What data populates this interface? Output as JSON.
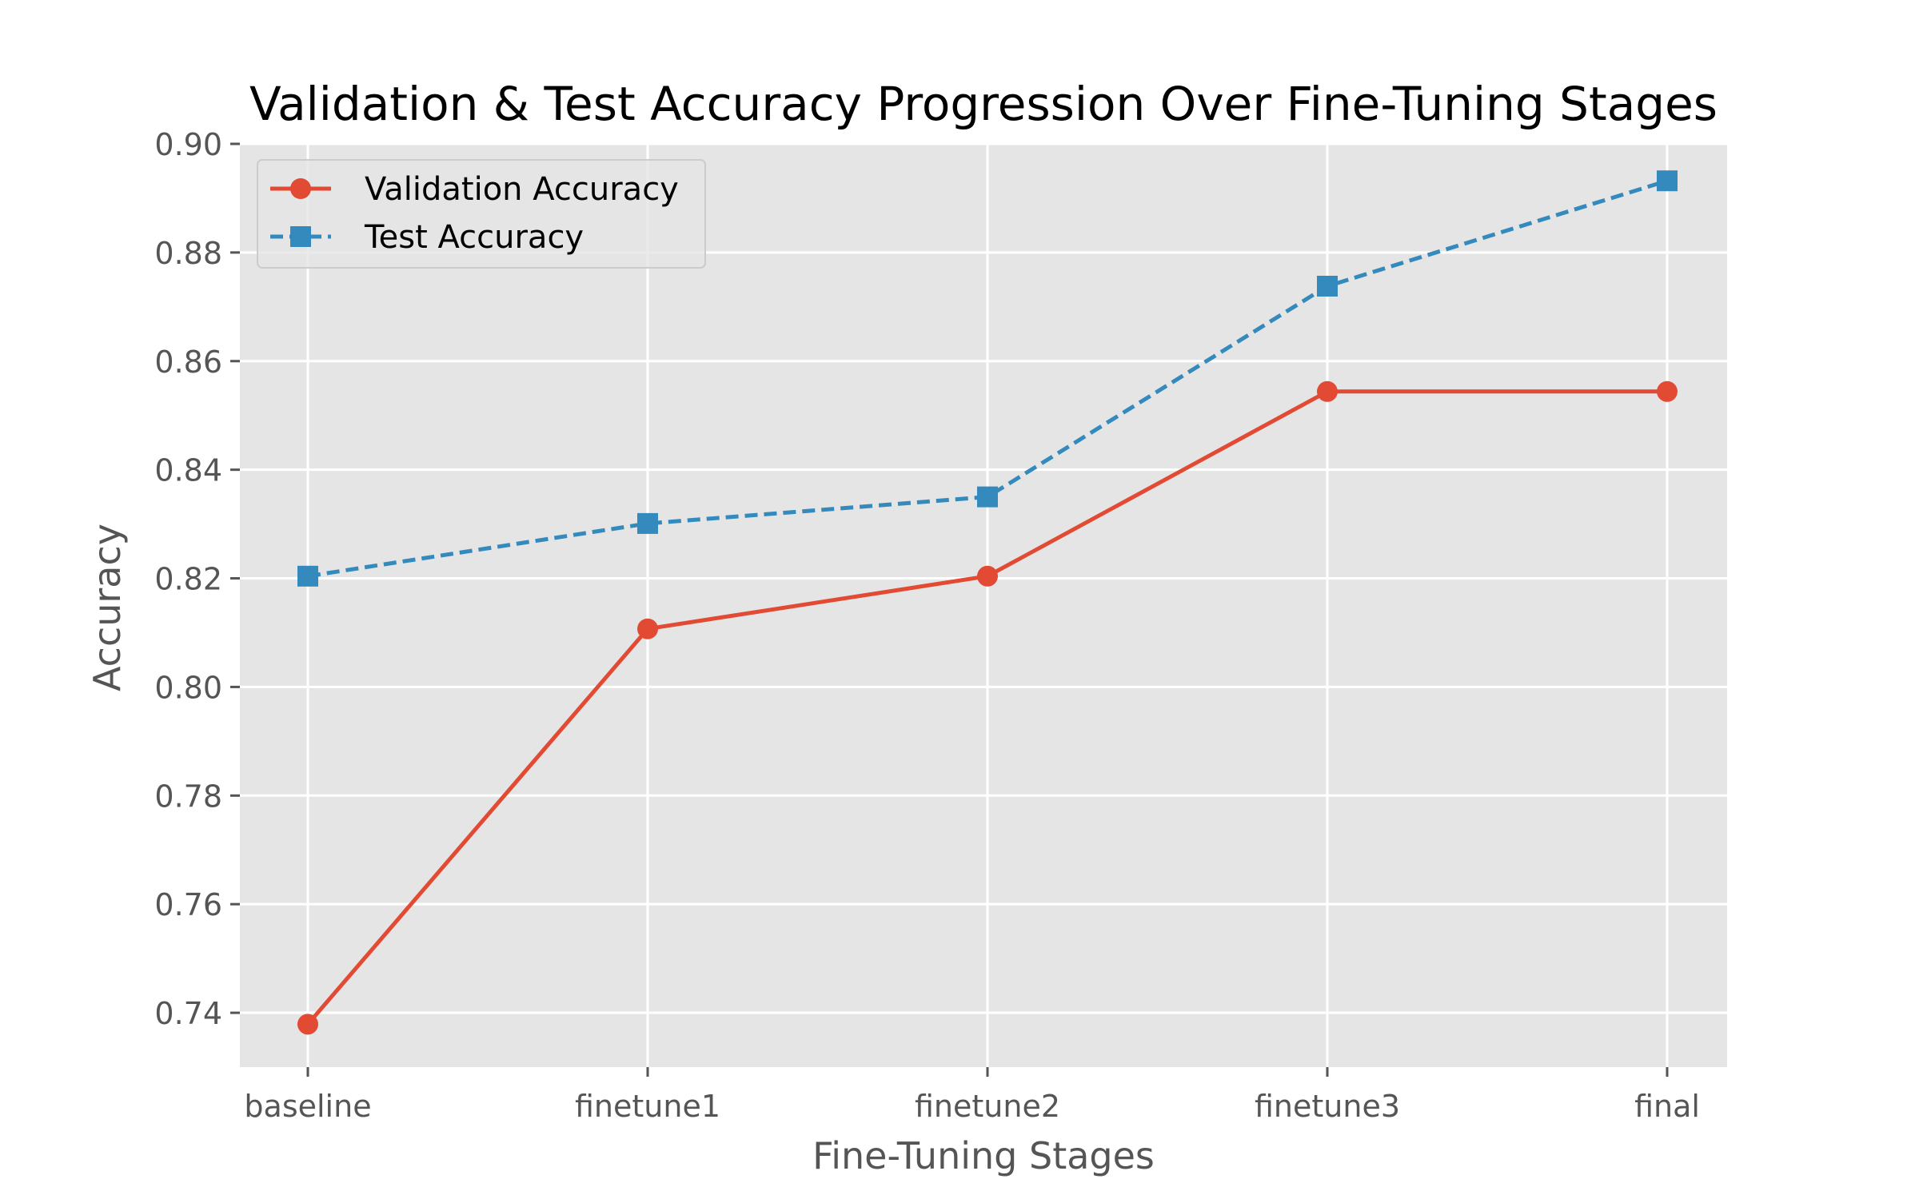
{
  "chart_data": {
    "type": "line",
    "title": "Validation & Test Accuracy Progression Over Fine-Tuning Stages",
    "xlabel": "Fine-Tuning Stages",
    "ylabel": "Accuracy",
    "categories": [
      "baseline",
      "finetune1",
      "finetune2",
      "finetune3",
      "final"
    ],
    "ylim": [
      0.73,
      0.9
    ],
    "yticks": [
      0.74,
      0.76,
      0.78,
      0.8,
      0.82,
      0.84,
      0.86,
      0.88,
      0.9
    ],
    "ytick_labels": [
      "0.74",
      "0.76",
      "0.78",
      "0.80",
      "0.82",
      "0.84",
      "0.86",
      "0.88",
      "0.90"
    ],
    "grid": true,
    "legend_position": "top-left",
    "series": [
      {
        "name": "Validation Accuracy",
        "values": [
          0.7379,
          0.8107,
          0.8204,
          0.8544,
          0.8544
        ],
        "color": "#E24A33",
        "marker": "circle",
        "linestyle": "solid"
      },
      {
        "name": "Test Accuracy",
        "values": [
          0.8204,
          0.8301,
          0.835,
          0.8738,
          0.8932
        ],
        "color": "#348ABD",
        "marker": "square",
        "linestyle": "dashed"
      }
    ]
  }
}
